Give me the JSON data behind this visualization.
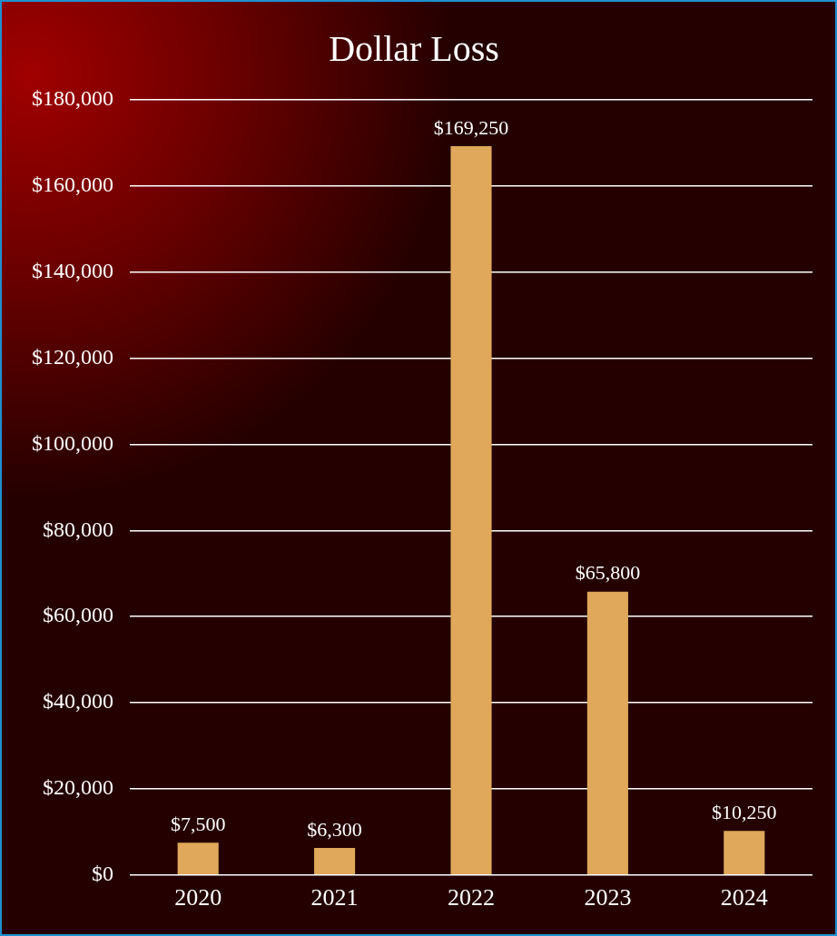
{
  "chart_data": {
    "type": "bar",
    "title": "Dollar Loss",
    "categories": [
      "2020",
      "2021",
      "2022",
      "2023",
      "2024"
    ],
    "values": [
      7500,
      6300,
      169250,
      65800,
      10250
    ],
    "value_labels": [
      "$7,500",
      "$6,300",
      "$169,250",
      "$65,800",
      "$10,250"
    ],
    "color": "#dfa85a",
    "ylim": [
      0,
      180000
    ],
    "yticks": [
      {
        "value": 0,
        "label": "$0"
      },
      {
        "value": 20000,
        "label": "$20,000"
      },
      {
        "value": 40000,
        "label": "$40,000"
      },
      {
        "value": 60000,
        "label": "$60,000"
      },
      {
        "value": 80000,
        "label": "$80,000"
      },
      {
        "value": 100000,
        "label": "$100,000"
      },
      {
        "value": 120000,
        "label": "$120,000"
      },
      {
        "value": 140000,
        "label": "$140,000"
      },
      {
        "value": 160000,
        "label": "$160,000"
      },
      {
        "value": 180000,
        "label": "$180,000"
      }
    ],
    "grid": "y"
  }
}
